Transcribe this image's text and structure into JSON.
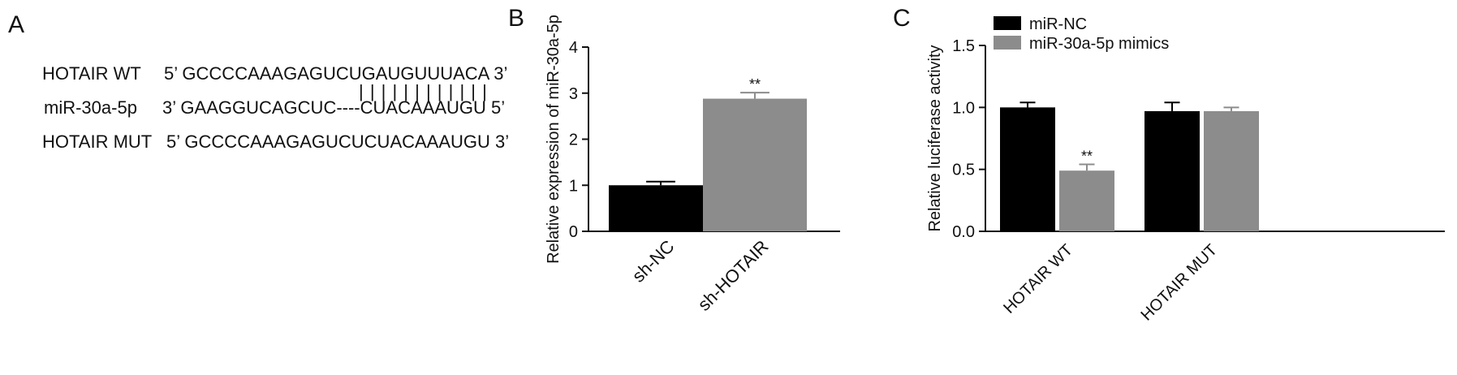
{
  "panels": {
    "a": {
      "letter": "A",
      "rows": [
        {
          "name": "HOTAIR WT",
          "seq": "5’ GCCCCAAAGAGUCUGAUGUUUACA 3’"
        },
        {
          "name": "miR-30a-5p",
          "seq": "3’ GAAGGUCAGCUC----CUACAAAUGU 5’"
        },
        {
          "name": "HOTAIR MUT",
          "seq": "5’ GCCCCAAAGAGUCUCUACAAAUGU 3’"
        }
      ],
      "pairing_marks": "| | | | | | | | | | | |"
    },
    "b": {
      "letter": "B"
    },
    "c": {
      "letter": "C"
    }
  },
  "chart_data": [
    {
      "type": "bar",
      "panel": "B",
      "categories": [
        "sh-NC",
        "sh-HOTAIR"
      ],
      "values": [
        1.0,
        2.88
      ],
      "errors": [
        0.08,
        0.13
      ],
      "colors": [
        "#000000",
        "#8c8c8c"
      ],
      "significance": [
        "",
        "**"
      ],
      "ylabel": "Relative expression of miR-30a-5p",
      "ylim": [
        0,
        4
      ],
      "yticks": [
        "0",
        "1",
        "2",
        "3",
        "4"
      ]
    },
    {
      "type": "bar",
      "panel": "C",
      "categories": [
        "HOTAIR WT",
        "HOTAIR MUT"
      ],
      "series": [
        {
          "name": "miR-NC",
          "color": "#000000",
          "values": [
            1.0,
            0.97
          ],
          "errors": [
            0.04,
            0.07
          ],
          "significance": [
            "",
            ""
          ]
        },
        {
          "name": "miR-30a-5p mimics",
          "color": "#8c8c8c",
          "values": [
            0.49,
            0.97
          ],
          "errors": [
            0.05,
            0.03
          ],
          "significance": [
            "**",
            ""
          ]
        }
      ],
      "ylabel": "Relative luciferase activity",
      "ylim": [
        0,
        1.5
      ],
      "yticks": [
        "0.0",
        "0.5",
        "1.0",
        "1.5"
      ],
      "legend_position": "top"
    }
  ]
}
